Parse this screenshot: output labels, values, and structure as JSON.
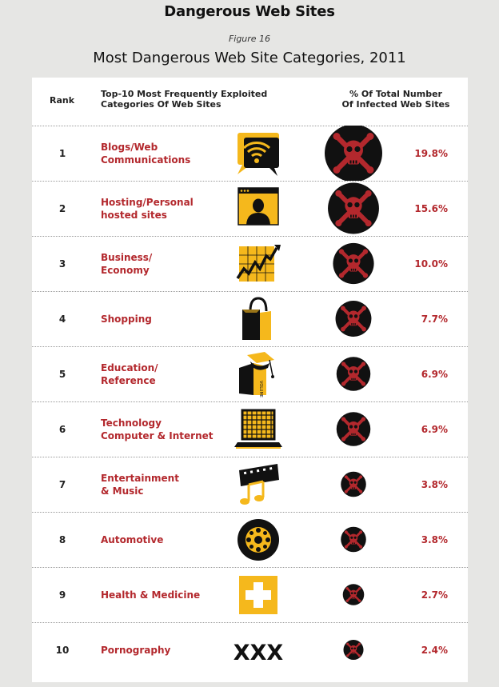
{
  "page_title": "Dangerous Web Sites",
  "figure_label": "Figure 16",
  "figure_title": "Most Dangerous Web Site Categories, 2011",
  "headers": {
    "rank": "Rank",
    "category_line1": "Top-10 Most Frequently Exploited",
    "category_line2": "Categories Of Web Sites",
    "pct_line1": "% Of Total Number",
    "pct_line2": "Of Infected Web Sites"
  },
  "colors": {
    "accent_red": "#b3282d",
    "marker_black": "#111111",
    "icon_yellow": "#f5b81c"
  },
  "chart_data": {
    "type": "table",
    "title": "Most Dangerous Web Site Categories, 2011",
    "columns": [
      "Rank",
      "Top-10 Most Frequently Exploited Categories Of Web Sites",
      "% Of Total Number Of Infected Web Sites"
    ],
    "rows": [
      {
        "rank": "1",
        "line1": "Blogs/Web",
        "line2": "Communications",
        "value": 19.8,
        "label": "19.8%",
        "icon": "speech-bubble-wifi-icon"
      },
      {
        "rank": "2",
        "line1": "Hosting/Personal",
        "line2": "hosted sites",
        "value": 15.6,
        "label": "15.6%",
        "icon": "personal-profile-icon"
      },
      {
        "rank": "3",
        "line1": "Business/",
        "line2": "Economy",
        "value": 10.0,
        "label": "10.0%",
        "icon": "stock-chart-icon"
      },
      {
        "rank": "4",
        "line1": "Shopping",
        "line2": "",
        "value": 7.7,
        "label": "7.7%",
        "icon": "shopping-bag-icon"
      },
      {
        "rank": "5",
        "line1": "Education/",
        "line2": "Reference",
        "value": 6.9,
        "label": "6.9%",
        "icon": "books-graduation-cap-icon"
      },
      {
        "rank": "6",
        "line1": "Technology",
        "line2": "Computer & Internet",
        "value": 6.9,
        "label": "6.9%",
        "icon": "laptop-icon"
      },
      {
        "rank": "7",
        "line1": "Entertainment",
        "line2": "& Music",
        "value": 3.8,
        "label": "3.8%",
        "icon": "music-film-icon"
      },
      {
        "rank": "8",
        "line1": "Automotive",
        "line2": "",
        "value": 3.8,
        "label": "3.8%",
        "icon": "wheel-icon"
      },
      {
        "rank": "9",
        "line1": "Health & Medicine",
        "line2": "",
        "value": 2.7,
        "label": "2.7%",
        "icon": "medical-cross-icon"
      },
      {
        "rank": "10",
        "line1": "Pornography",
        "line2": "",
        "value": 2.4,
        "label": "2.4%",
        "icon": "xxx-icon",
        "icon_text": "XXX"
      }
    ]
  }
}
